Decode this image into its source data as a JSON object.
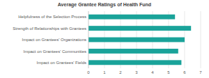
{
  "chart_data": {
    "type": "bar",
    "orientation": "horizontal",
    "title": "Average Grantee Ratings of Health Fund",
    "categories": [
      "Helpfulness of the Selection Process",
      "Strength of Relationships with Grantees",
      "Impact on Grantees' Organizations",
      "Impact on Grantees' Communities",
      "Impact on Grantees' Fields"
    ],
    "values": [
      5.4,
      6.4,
      6.0,
      5.6,
      5.8
    ],
    "color": "#1aa39a",
    "xlim": [
      0,
      7
    ],
    "xticks": [
      0,
      1,
      2,
      3,
      4,
      5,
      6,
      7
    ],
    "grid": true
  }
}
